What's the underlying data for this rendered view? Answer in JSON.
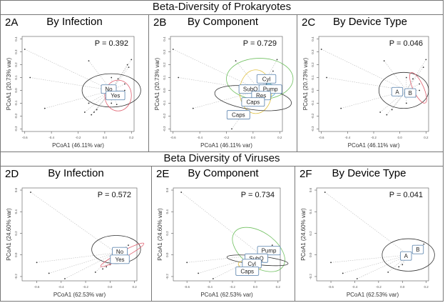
{
  "sections": [
    {
      "title": "Beta-Diversity of Prokaryotes"
    },
    {
      "title": "Beta Diversity of Viruses"
    }
  ],
  "chart_data": [
    {
      "id": "2A",
      "type": "scatter",
      "title": "By Infection",
      "annotation": "P = 0.392",
      "xlabel": "PCoA1 (46.11% var)",
      "ylabel": "PCoA1 (20.73% var)",
      "xlim": [
        -0.62,
        0.22
      ],
      "ylim": [
        -0.32,
        0.42
      ],
      "xticks": [
        -0.6,
        -0.4,
        -0.2,
        0.0,
        0.2
      ],
      "yticks": [
        -0.3,
        -0.2,
        -0.1,
        0.0,
        0.1,
        0.2,
        0.3,
        0.4
      ],
      "centroid": [
        0.05,
        0.0
      ],
      "points": [
        [
          -0.6,
          0.32
        ],
        [
          -0.56,
          0.1
        ],
        [
          -0.45,
          -0.14
        ],
        [
          -0.12,
          0.23
        ],
        [
          -0.15,
          -0.17
        ],
        [
          -0.1,
          -0.19
        ],
        [
          -0.08,
          -0.17
        ],
        [
          -0.06,
          -0.15
        ],
        [
          -0.12,
          -0.1
        ],
        [
          0.05,
          0.1
        ],
        [
          0.1,
          0.09
        ],
        [
          0.15,
          0.05
        ],
        [
          0.18,
          0.18
        ],
        [
          0.2,
          0.24
        ],
        [
          0.17,
          0.2
        ],
        [
          0.12,
          -0.05
        ],
        [
          0.05,
          -0.1
        ],
        [
          0.09,
          -0.11
        ],
        [
          0.15,
          0.0
        ],
        [
          0.03,
          -0.05
        ]
      ],
      "groups": [
        {
          "label": "No",
          "color": "#333333",
          "center": [
            0.05,
            0.0
          ],
          "r": [
            0.22,
            0.13
          ],
          "angle": 0,
          "lx": 0.03,
          "ly": 0.01
        },
        {
          "label": "Yes",
          "color": "#e06070",
          "center": [
            0.1,
            -0.04
          ],
          "r": [
            0.1,
            0.12
          ],
          "angle": 0,
          "lx": 0.08,
          "ly": -0.04
        }
      ]
    },
    {
      "id": "2B",
      "type": "scatter",
      "title": "By Component",
      "annotation": "P = 0.729",
      "xlabel": "PCoA1 (46.11% var)",
      "ylabel": "PCoA1 (20.73% var)",
      "xlim": [
        -0.62,
        0.22
      ],
      "ylim": [
        -0.32,
        0.42
      ],
      "xticks": [
        -0.6,
        -0.4,
        -0.2,
        0.0,
        0.2
      ],
      "yticks": [
        -0.3,
        -0.2,
        -0.1,
        0.0,
        0.1,
        0.2,
        0.3,
        0.4
      ],
      "centroid": [
        0.05,
        0.0
      ],
      "points": [
        [
          -0.6,
          0.32
        ],
        [
          -0.56,
          0.1
        ],
        [
          -0.45,
          -0.14
        ],
        [
          -0.13,
          0.23
        ],
        [
          -0.16,
          -0.3
        ],
        [
          0.18,
          0.24
        ],
        [
          0.15,
          0.15
        ],
        [
          0.1,
          0.05
        ],
        [
          0.05,
          -0.1
        ]
      ],
      "groups": [
        {
          "label": "Cyl",
          "color": "#70c060",
          "center": [
            0.05,
            0.09
          ],
          "r": [
            0.25,
            0.16
          ],
          "angle": 0,
          "lx": 0.1,
          "ly": 0.09
        },
        {
          "label": "SubQ",
          "color": "#e0c040",
          "center": [
            0.02,
            -0.01
          ],
          "r": [
            0.12,
            0.17
          ],
          "angle": 0,
          "lx": -0.02,
          "ly": 0.01
        },
        {
          "label": "Pump",
          "color": "#50b0d0",
          "center": [
            0.12,
            0.0
          ],
          "r": [
            0.05,
            0.05
          ],
          "angle": 0,
          "lx": 0.13,
          "ly": 0.01
        },
        {
          "label": "Res",
          "color": "#8080c0",
          "center": [
            0.05,
            -0.04
          ],
          "r": [
            0.05,
            0.04
          ],
          "angle": 0,
          "lx": 0.06,
          "ly": -0.04
        },
        {
          "label": "Caps",
          "color": "#333333",
          "center": [
            0.0,
            -0.06
          ],
          "r": [
            0.29,
            0.09
          ],
          "angle": -8,
          "lx": 0.0,
          "ly": -0.09
        },
        {
          "label": "Caps",
          "color": "#4090d0",
          "center": [
            -0.1,
            -0.19
          ],
          "r": [
            0.02,
            0.02
          ],
          "angle": 0,
          "lx": -0.11,
          "ly": -0.19
        }
      ]
    },
    {
      "id": "2C",
      "type": "scatter",
      "title": "By Device Type",
      "annotation": "P = 0.046",
      "xlabel": "PCoA1 (46.11% var)",
      "ylabel": "PCoA1 (20.73% var)",
      "xlim": [
        -0.62,
        0.22
      ],
      "ylim": [
        -0.32,
        0.42
      ],
      "xticks": [
        -0.6,
        -0.4,
        -0.2,
        0.0,
        0.2
      ],
      "yticks": [
        -0.3,
        -0.2,
        -0.1,
        0.0,
        0.1,
        0.2,
        0.3,
        0.4
      ],
      "centroid": [
        0.05,
        0.0
      ],
      "points": [
        [
          -0.6,
          0.32
        ],
        [
          -0.56,
          0.1
        ],
        [
          -0.45,
          -0.14
        ],
        [
          -0.12,
          0.23
        ],
        [
          -0.15,
          -0.17
        ],
        [
          -0.1,
          -0.19
        ],
        [
          -0.06,
          -0.15
        ],
        [
          0.05,
          0.1
        ],
        [
          0.1,
          0.09
        ],
        [
          0.15,
          0.05
        ],
        [
          0.18,
          0.18
        ],
        [
          0.2,
          0.24
        ],
        [
          0.12,
          -0.05
        ],
        [
          0.05,
          -0.1
        ],
        [
          0.15,
          0.0
        ]
      ],
      "groups": [
        {
          "label": "A",
          "color": "#333333",
          "center": [
            0.03,
            0.0
          ],
          "r": [
            0.19,
            0.14
          ],
          "angle": 0,
          "lx": -0.02,
          "ly": -0.01
        },
        {
          "label": "B",
          "color": "#e06070",
          "center": [
            0.14,
            0.02
          ],
          "r": [
            0.04,
            0.13
          ],
          "angle": 25,
          "lx": 0.08,
          "ly": -0.02
        }
      ]
    },
    {
      "id": "2D",
      "type": "scatter",
      "title": "By Infection",
      "annotation": "P = 0.572",
      "xlabel": "PCoA1 (62.53% var)",
      "ylabel": "PCoA1 (24.60% var)",
      "xlim": [
        -0.72,
        0.22
      ],
      "ylim": [
        -0.24,
        0.62
      ],
      "xticks": [
        -0.6,
        -0.4,
        -0.2,
        0.0,
        0.2
      ],
      "yticks": [
        -0.2,
        0.0,
        0.2,
        0.4,
        0.6
      ],
      "centroid": [
        0.05,
        0.02
      ],
      "points": [
        [
          -0.65,
          0.58
        ],
        [
          -0.6,
          -0.07
        ],
        [
          -0.5,
          -0.17
        ],
        [
          -0.37,
          -0.22
        ],
        [
          -0.12,
          -0.16
        ],
        [
          -0.06,
          -0.13
        ],
        [
          -0.03,
          -0.11
        ],
        [
          0.15,
          0.09
        ],
        [
          0.0,
          -0.09
        ]
      ],
      "groups": [
        {
          "label": "No",
          "color": "#333333",
          "center": [
            0.05,
            0.05
          ],
          "r": [
            0.2,
            0.13
          ],
          "angle": 0,
          "lx": 0.08,
          "ly": 0.03
        },
        {
          "label": "Yes",
          "color": "#e06070",
          "center": [
            0.1,
            0.0
          ],
          "r": [
            0.2,
            0.03
          ],
          "angle": 28,
          "lx": 0.08,
          "ly": -0.04
        }
      ]
    },
    {
      "id": "2E",
      "type": "scatter",
      "title": "By Component",
      "annotation": "P = 0.734",
      "xlabel": "PCoA1 (62.53% var)",
      "ylabel": "PCoA1 (24.60% var)",
      "xlim": [
        -0.72,
        0.22
      ],
      "ylim": [
        -0.24,
        0.62
      ],
      "xticks": [
        -0.6,
        -0.4,
        -0.2,
        0.0,
        0.2
      ],
      "yticks": [
        -0.2,
        0.0,
        0.2,
        0.4,
        0.6
      ],
      "centroid": [
        0.05,
        0.0
      ],
      "points": [
        [
          -0.65,
          0.58
        ],
        [
          -0.6,
          -0.07
        ],
        [
          -0.5,
          -0.17
        ],
        [
          -0.37,
          -0.22
        ],
        [
          -0.12,
          -0.16
        ],
        [
          0.15,
          0.09
        ]
      ],
      "groups": [
        {
          "label": "Pump",
          "color": "#70c060",
          "center": [
            0.03,
            0.05
          ],
          "r": [
            0.26,
            0.16
          ],
          "angle": -35,
          "lx": 0.12,
          "ly": 0.04
        },
        {
          "label": "SubQ",
          "color": "#333333",
          "center": [
            0.02,
            -0.05
          ],
          "r": [
            0.27,
            0.04
          ],
          "angle": -6,
          "lx": 0.01,
          "ly": -0.03
        },
        {
          "label": "Cyl",
          "color": "#e0c040",
          "center": [
            -0.05,
            -0.1
          ],
          "r": [
            0.1,
            0.04
          ],
          "angle": -10,
          "lx": -0.03,
          "ly": -0.08
        },
        {
          "label": "Caps",
          "color": "#e0a040",
          "center": [
            -0.12,
            -0.15
          ],
          "r": [
            0.04,
            0.03
          ],
          "angle": 0,
          "lx": -0.07,
          "ly": -0.15
        }
      ]
    },
    {
      "id": "2F",
      "type": "scatter",
      "title": "By Device Type",
      "annotation": "P = 0.041",
      "xlabel": "PCoA1 (62.53% var)",
      "ylabel": "PCoA1 (24.60% var)",
      "xlim": [
        -0.72,
        0.22
      ],
      "ylim": [
        -0.24,
        0.62
      ],
      "xticks": [
        -0.6,
        -0.4,
        -0.2,
        0.0,
        0.2
      ],
      "yticks": [
        -0.2,
        0.0,
        0.2,
        0.4,
        0.6
      ],
      "centroid": [
        0.05,
        0.0
      ],
      "points": [
        [
          -0.65,
          0.58
        ],
        [
          -0.6,
          -0.07
        ],
        [
          -0.5,
          -0.17
        ],
        [
          -0.38,
          -0.22
        ],
        [
          -0.12,
          -0.16
        ],
        [
          -0.03,
          -0.11
        ],
        [
          0.0,
          -0.09
        ],
        [
          0.18,
          0.1
        ]
      ],
      "groups": [
        {
          "label": "A",
          "color": "#333333",
          "center": [
            0.05,
            0.0
          ],
          "r": [
            0.22,
            0.15
          ],
          "angle": 0,
          "lx": 0.03,
          "ly": -0.01
        },
        {
          "label": "B",
          "color": "#e06070",
          "center": [
            0.13,
            0.06
          ],
          "r": [
            0.03,
            0.03
          ],
          "angle": 0,
          "lx": 0.13,
          "ly": 0.05
        }
      ]
    }
  ]
}
